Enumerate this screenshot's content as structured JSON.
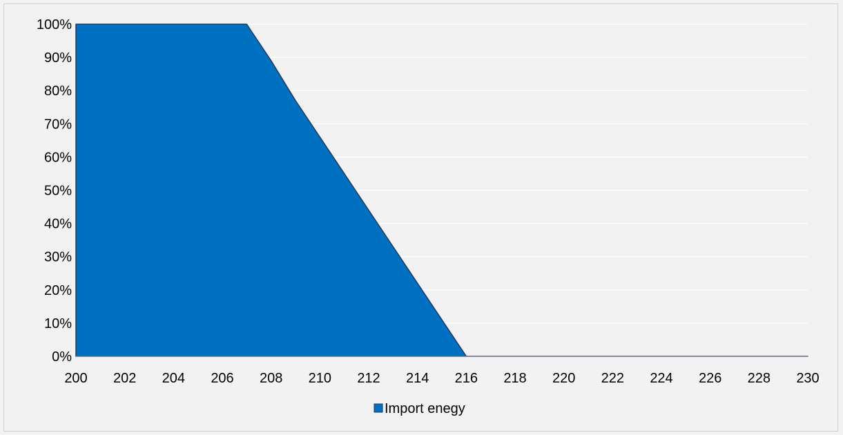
{
  "chart_data": {
    "type": "area",
    "title": "",
    "xlabel": "",
    "ylabel": "",
    "x": [
      200,
      201,
      202,
      203,
      204,
      205,
      206,
      207,
      208,
      209,
      210,
      211,
      212,
      213,
      214,
      215,
      216,
      217,
      218,
      219,
      220,
      221,
      222,
      223,
      224,
      225,
      226,
      227,
      228,
      229,
      230
    ],
    "series": [
      {
        "name": "Import enegy",
        "color": "#0070c0",
        "values": [
          100,
          100,
          100,
          100,
          100,
          100,
          100,
          100,
          89,
          77,
          66,
          55,
          44,
          33,
          22,
          11,
          0,
          0,
          0,
          0,
          0,
          0,
          0,
          0,
          0,
          0,
          0,
          0,
          0,
          0,
          0
        ]
      }
    ],
    "xlim": [
      200,
      230
    ],
    "ylim": [
      0,
      100
    ],
    "x_ticks": [
      "200",
      "202",
      "204",
      "206",
      "208",
      "210",
      "212",
      "214",
      "216",
      "218",
      "220",
      "222",
      "224",
      "226",
      "228",
      "230"
    ],
    "y_ticks": [
      "0%",
      "10%",
      "20%",
      "30%",
      "40%",
      "50%",
      "60%",
      "70%",
      "80%",
      "90%",
      "100%"
    ],
    "grid": "horizontal",
    "legend_position": "bottom"
  }
}
